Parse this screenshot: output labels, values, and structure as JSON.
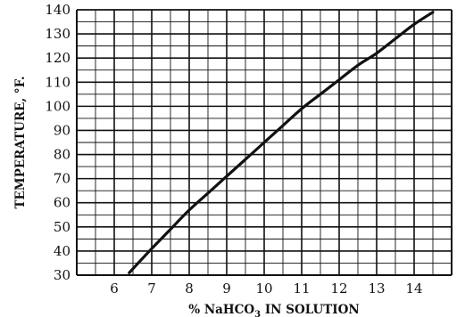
{
  "chart_data": {
    "type": "line",
    "title": "",
    "xlabel_parts": [
      "% NaHCO",
      "3",
      " IN SOLUTION"
    ],
    "ylabel": "TEMPERATURE, °F.",
    "xlim": [
      5,
      15
    ],
    "ylim": [
      30,
      140
    ],
    "x_ticks": [
      6,
      7,
      8,
      9,
      10,
      11,
      12,
      13,
      14
    ],
    "y_ticks": [
      30,
      40,
      50,
      60,
      70,
      80,
      90,
      100,
      110,
      120,
      130,
      140
    ],
    "grid": true,
    "series": [
      {
        "x": [
          6.4,
          7.0,
          7.5,
          8.0,
          8.5,
          9.0,
          9.5,
          10.0,
          10.5,
          11.0,
          11.5,
          12.0,
          12.5,
          13.0,
          13.5,
          14.0,
          14.5
        ],
        "y": [
          31,
          41,
          49,
          57,
          64,
          71,
          78,
          85,
          92,
          99,
          105,
          111,
          117,
          122,
          128,
          134,
          139
        ],
        "color": "#111111"
      }
    ]
  }
}
